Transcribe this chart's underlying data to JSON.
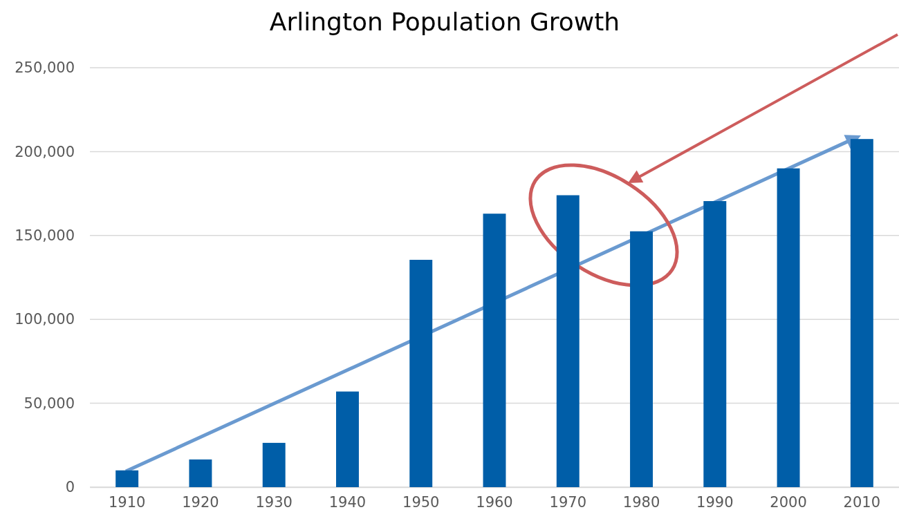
{
  "chart_data": {
    "type": "bar",
    "title": "Arlington Population Growth",
    "categories": [
      "1910",
      "1920",
      "1930",
      "1940",
      "1950",
      "1960",
      "1970",
      "1980",
      "1990",
      "2000",
      "2010"
    ],
    "values": [
      10000,
      16500,
      26400,
      57000,
      135500,
      163000,
      174000,
      152500,
      170500,
      190000,
      207500
    ],
    "color": "#005ea8",
    "ylim": [
      0,
      250000
    ],
    "yticks": [
      {
        "value": 0,
        "label": "0"
      },
      {
        "value": 50000,
        "label": "50,000"
      },
      {
        "value": 100000,
        "label": "100,000"
      },
      {
        "value": 150000,
        "label": "150,000"
      },
      {
        "value": 200000,
        "label": "200,000"
      },
      {
        "value": 250000,
        "label": "250,000"
      }
    ],
    "grid": "y"
  }
}
